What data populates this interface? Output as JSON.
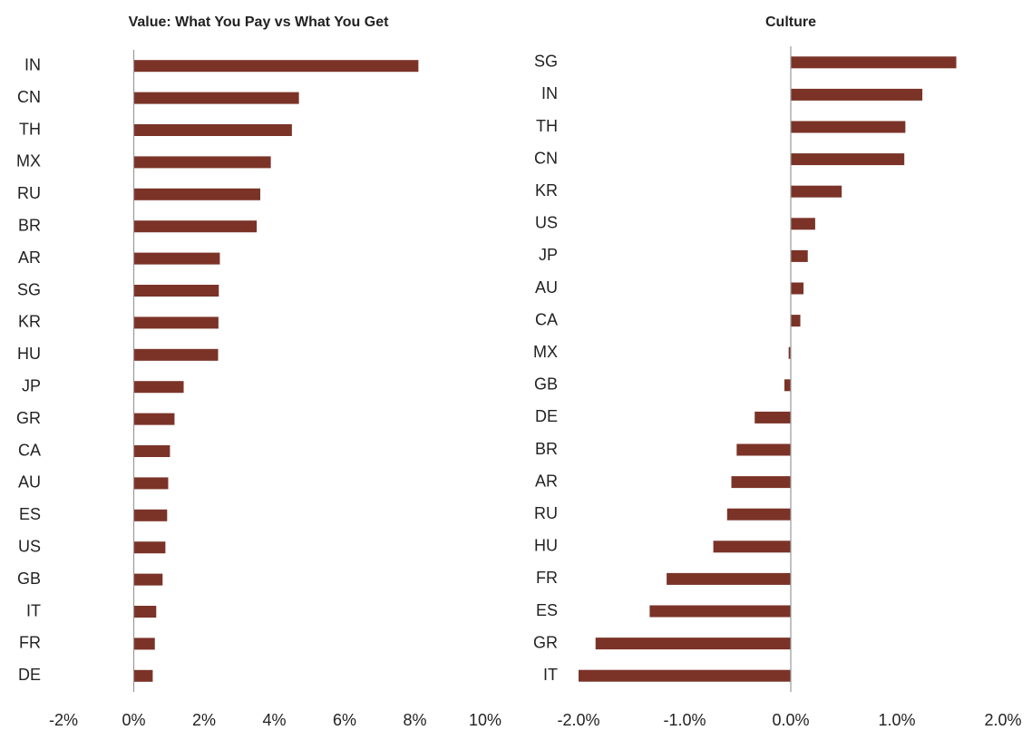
{
  "chart_data": [
    {
      "type": "barh",
      "title": "Value: What You Pay vs What You Get",
      "categories": [
        "IN",
        "CN",
        "TH",
        "MX",
        "RU",
        "BR",
        "AR",
        "SG",
        "KR",
        "HU",
        "JP",
        "GR",
        "CA",
        "AU",
        "ES",
        "US",
        "GB",
        "IT",
        "FR",
        "DE"
      ],
      "values": [
        8.1,
        4.7,
        4.5,
        3.9,
        3.6,
        3.5,
        2.45,
        2.42,
        2.41,
        2.4,
        1.42,
        1.16,
        1.03,
        0.98,
        0.95,
        0.9,
        0.82,
        0.64,
        0.6,
        0.54
      ],
      "color": "#7b3328",
      "xlim": [
        -2,
        10
      ],
      "xticks": [
        {
          "value": -2,
          "label": "-2%"
        },
        {
          "value": 0,
          "label": "0%"
        },
        {
          "value": 2,
          "label": "2%"
        },
        {
          "value": 4,
          "label": "4%"
        },
        {
          "value": 6,
          "label": "6%"
        },
        {
          "value": 8,
          "label": "8%"
        },
        {
          "value": 10,
          "label": "10%"
        }
      ]
    },
    {
      "type": "barh",
      "title": "Culture",
      "categories": [
        "SG",
        "IN",
        "TH",
        "CN",
        "KR",
        "US",
        "JP",
        "AU",
        "CA",
        "MX",
        "GB",
        "DE",
        "BR",
        "AR",
        "RU",
        "HU",
        "FR",
        "ES",
        "GR",
        "IT"
      ],
      "values": [
        1.56,
        1.24,
        1.08,
        1.07,
        0.48,
        0.23,
        0.16,
        0.12,
        0.09,
        -0.02,
        -0.06,
        -0.34,
        -0.51,
        -0.56,
        -0.6,
        -0.73,
        -1.17,
        -1.33,
        -1.84,
        -2.0
      ],
      "color": "#7b3328",
      "xlim": [
        -2,
        2
      ],
      "xticks": [
        {
          "value": -2,
          "label": "-2.0%"
        },
        {
          "value": -1,
          "label": "-1.0%"
        },
        {
          "value": 0,
          "label": "0.0%"
        },
        {
          "value": 1,
          "label": "1.0%"
        },
        {
          "value": 2,
          "label": "2.0%"
        }
      ]
    }
  ]
}
